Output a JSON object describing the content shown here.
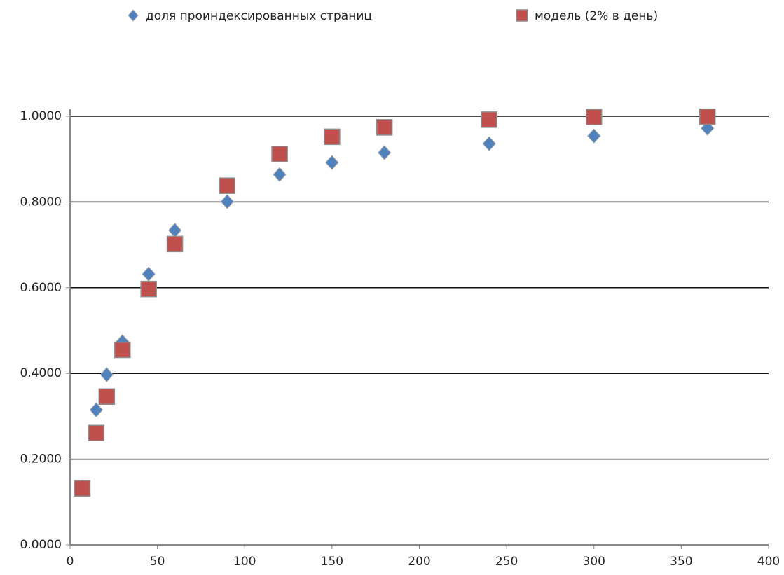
{
  "chart_data": {
    "type": "scatter",
    "xlim": [
      0,
      400
    ],
    "xticks": [
      0,
      50,
      100,
      150,
      200,
      250,
      300,
      350,
      400
    ],
    "ylim": [
      0,
      1
    ],
    "yticks": [
      {
        "value": 0,
        "label": "0.0000"
      },
      {
        "value": 0.2,
        "label": "0.2000"
      },
      {
        "value": 0.4,
        "label": "0.4000"
      },
      {
        "value": 0.6,
        "label": "0.6000"
      },
      {
        "value": 0.8,
        "label": "0.8000"
      },
      {
        "value": 1,
        "label": "1.0000"
      }
    ],
    "grid": true,
    "legend": "top",
    "series": [
      {
        "name": "доля проиндексированных страниц",
        "color": "#4f81bd",
        "marker": "diamond",
        "x": [
          7,
          15,
          21,
          30,
          45,
          60,
          90,
          120,
          150,
          180,
          240,
          300,
          365
        ],
        "values": [
          0.135,
          0.315,
          0.397,
          0.474,
          0.632,
          0.734,
          0.801,
          0.864,
          0.892,
          0.915,
          0.936,
          0.954,
          0.972
        ]
      },
      {
        "name": "модель (2% в день)",
        "color": "#c0504d",
        "marker": "square",
        "x": [
          7,
          15,
          21,
          30,
          45,
          60,
          90,
          120,
          150,
          180,
          240,
          300,
          365
        ],
        "values": [
          0.132,
          0.261,
          0.346,
          0.455,
          0.597,
          0.702,
          0.838,
          0.912,
          0.952,
          0.974,
          0.992,
          0.998,
          0.999
        ]
      }
    ]
  }
}
